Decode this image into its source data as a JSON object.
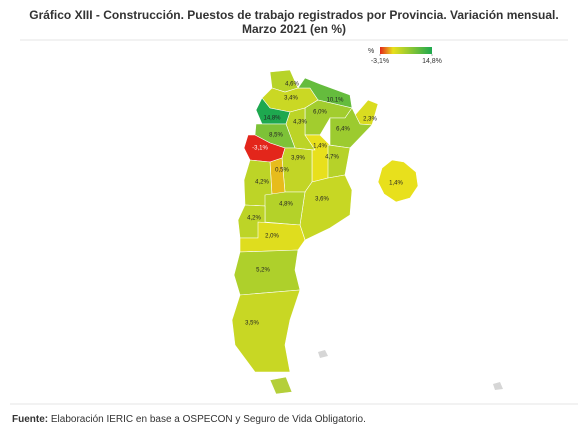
{
  "chart_data": {
    "type": "choropleth",
    "title": "Gráfico XIII - Construcción. Puestos de trabajo registrados por Provincia. Variación mensual. Marzo 2021 (en %)",
    "values": [
      4.6,
      3.4,
      10.1,
      6.0,
      2.3,
      6.4,
      14.8,
      4.3,
      8.5,
      -3.1,
      1.4,
      4.7,
      3.9,
      0.5,
      4.2,
      3.6,
      4.8,
      4.2,
      2.0,
      5.2,
      3.5,
      1.4
    ],
    "value_labels": [
      "4,6%",
      "3,4%",
      "10,1%",
      "6,0%",
      "2,3%",
      "6,4%",
      "14,8%",
      "4,3%",
      "8,5%",
      "-3,1%",
      "1,4%",
      "4,7%",
      "3,9%",
      "0,5%",
      "4,2%",
      "3,6%",
      "4,8%",
      "4,2%",
      "2,0%",
      "5,2%",
      "3,5%",
      "1,4%"
    ],
    "legend": {
      "title": "%",
      "ticks": [
        {
          "value": -3.1,
          "label": "-3,1%"
        },
        {
          "value": 14.8,
          "label": "14,8%"
        }
      ]
    },
    "colors": [
      "#e3261b",
      "#e8e01c",
      "#1ea84f"
    ],
    "source": {
      "label": "Fuente:",
      "text": "Elaboración IERIC en base a OSPECON y Seguro de Vida Obligatorio."
    }
  }
}
